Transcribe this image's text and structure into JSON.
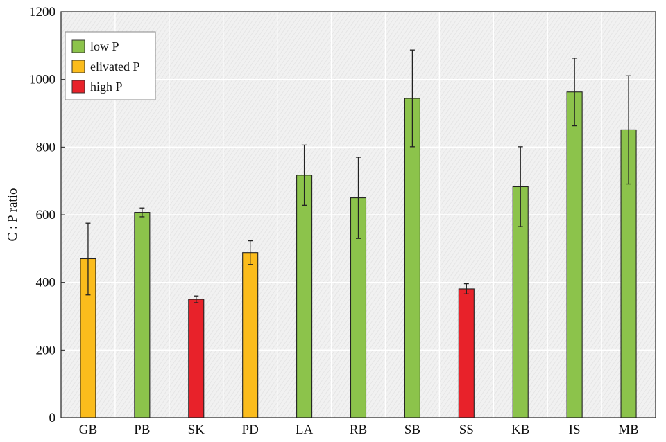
{
  "chart_data": {
    "type": "bar",
    "ylabel": "C : P ratio",
    "xlabel": "",
    "ylim": [
      0,
      1200
    ],
    "yticks": [
      0,
      200,
      400,
      600,
      800,
      1000,
      1200
    ],
    "grid": true,
    "legend_position": "top-left",
    "categories": [
      "GB",
      "PB",
      "SK",
      "PD",
      "LA",
      "RB",
      "SB",
      "SS",
      "KB",
      "IS",
      "MB"
    ],
    "values": [
      470,
      607,
      350,
      488,
      717,
      650,
      944,
      381,
      683,
      963,
      851
    ],
    "error_upper": [
      575,
      620,
      360,
      523,
      806,
      770,
      1087,
      396,
      801,
      1063,
      1011
    ],
    "error_lower": [
      363,
      594,
      340,
      453,
      628,
      530,
      801,
      366,
      565,
      863,
      691
    ],
    "groups": [
      "elivated P",
      "low P",
      "high P",
      "elivated P",
      "low P",
      "low P",
      "low P",
      "high P",
      "low P",
      "low P",
      "low P"
    ],
    "legend": [
      {
        "name": "low P",
        "color": "#8cc34b"
      },
      {
        "name": "elivated P",
        "color": "#fbbc1c"
      },
      {
        "name": "high P",
        "color": "#e8222a"
      }
    ]
  }
}
